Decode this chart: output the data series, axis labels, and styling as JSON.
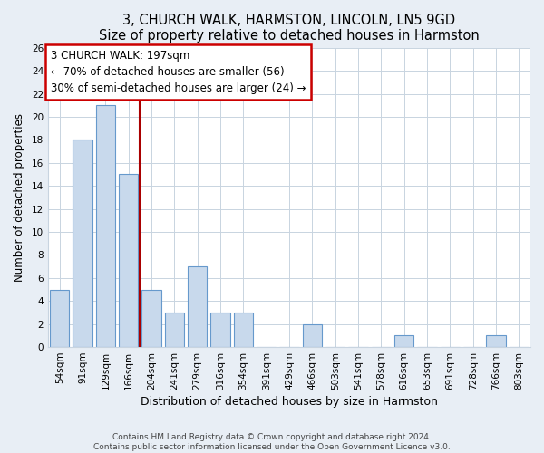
{
  "title": "3, CHURCH WALK, HARMSTON, LINCOLN, LN5 9GD",
  "subtitle": "Size of property relative to detached houses in Harmston",
  "xlabel": "Distribution of detached houses by size in Harmston",
  "ylabel": "Number of detached properties",
  "categories": [
    "54sqm",
    "91sqm",
    "129sqm",
    "166sqm",
    "204sqm",
    "241sqm",
    "279sqm",
    "316sqm",
    "354sqm",
    "391sqm",
    "429sqm",
    "466sqm",
    "503sqm",
    "541sqm",
    "578sqm",
    "616sqm",
    "653sqm",
    "691sqm",
    "728sqm",
    "766sqm",
    "803sqm"
  ],
  "values": [
    5,
    18,
    21,
    15,
    5,
    3,
    7,
    3,
    3,
    0,
    0,
    2,
    0,
    0,
    0,
    1,
    0,
    0,
    0,
    1,
    0
  ],
  "bar_color": "#c8d9ec",
  "bar_edge_color": "#6699cc",
  "vline_x_index": 3.5,
  "vline_color": "#aa0000",
  "annotation_line1": "3 CHURCH WALK: 197sqm",
  "annotation_line2": "← 70% of detached houses are smaller (56)",
  "annotation_line3": "30% of semi-detached houses are larger (24) →",
  "annotation_box_color": "#ffffff",
  "annotation_box_edge_color": "#cc0000",
  "ylim": [
    0,
    26
  ],
  "yticks": [
    0,
    2,
    4,
    6,
    8,
    10,
    12,
    14,
    16,
    18,
    20,
    22,
    24,
    26
  ],
  "footer_text": "Contains HM Land Registry data © Crown copyright and database right 2024.\nContains public sector information licensed under the Open Government Licence v3.0.",
  "background_color": "#e8eef5",
  "plot_background_color": "#ffffff",
  "grid_color": "#c8d4e0",
  "title_fontsize": 10.5,
  "xlabel_fontsize": 9,
  "ylabel_fontsize": 8.5,
  "tick_fontsize": 7.5,
  "footer_fontsize": 6.5,
  "annotation_fontsize": 8.5
}
